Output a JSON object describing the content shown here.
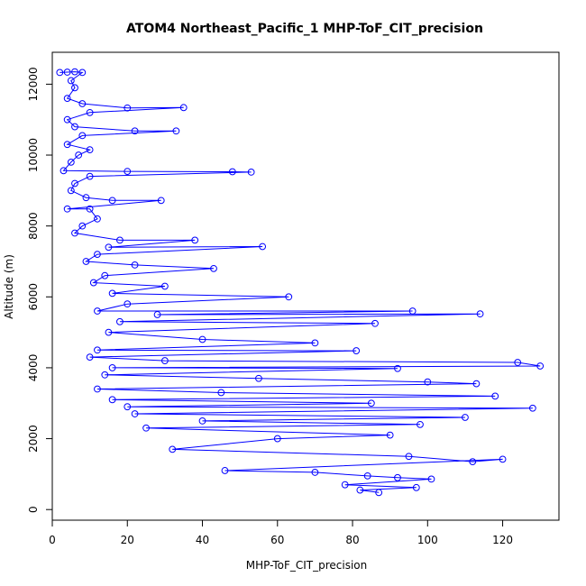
{
  "chart_data": {
    "type": "scatter",
    "title": "ATOM4 Northeast_Pacific_1 MHP-ToF_CIT_precision",
    "xlabel": "MHP-ToF_CIT_precision",
    "ylabel": "Altitude (m)",
    "xlim": [
      0,
      135
    ],
    "ylim": [
      -300,
      12900
    ],
    "x_ticks": [
      0,
      20,
      40,
      60,
      80,
      100,
      120
    ],
    "y_ticks": [
      0,
      2000,
      4000,
      6000,
      8000,
      10000,
      12000
    ],
    "grid": false,
    "legend": "none",
    "marker": "open-circle",
    "connected": true,
    "series": [
      {
        "color": "#0000ff",
        "points": [
          [
            2,
            12330
          ],
          [
            4,
            12340
          ],
          [
            6,
            12350
          ],
          [
            8,
            12330
          ],
          [
            5,
            12100
          ],
          [
            6,
            11900
          ],
          [
            4,
            11600
          ],
          [
            8,
            11450
          ],
          [
            20,
            11330
          ],
          [
            35,
            11340
          ],
          [
            10,
            11200
          ],
          [
            4,
            11000
          ],
          [
            6,
            10800
          ],
          [
            22,
            10680
          ],
          [
            33,
            10680
          ],
          [
            8,
            10550
          ],
          [
            4,
            10300
          ],
          [
            10,
            10150
          ],
          [
            7,
            10000
          ],
          [
            5,
            9800
          ],
          [
            3,
            9560
          ],
          [
            20,
            9540
          ],
          [
            48,
            9530
          ],
          [
            53,
            9520
          ],
          [
            10,
            9400
          ],
          [
            6,
            9200
          ],
          [
            5,
            9000
          ],
          [
            9,
            8800
          ],
          [
            16,
            8720
          ],
          [
            29,
            8720
          ],
          [
            4,
            8480
          ],
          [
            10,
            8480
          ],
          [
            12,
            8200
          ],
          [
            8,
            8000
          ],
          [
            6,
            7800
          ],
          [
            18,
            7600
          ],
          [
            38,
            7600
          ],
          [
            15,
            7400
          ],
          [
            56,
            7420
          ],
          [
            12,
            7200
          ],
          [
            9,
            7000
          ],
          [
            22,
            6900
          ],
          [
            43,
            6800
          ],
          [
            14,
            6600
          ],
          [
            11,
            6400
          ],
          [
            30,
            6300
          ],
          [
            16,
            6100
          ],
          [
            63,
            6000
          ],
          [
            20,
            5800
          ],
          [
            12,
            5600
          ],
          [
            96,
            5600
          ],
          [
            28,
            5500
          ],
          [
            114,
            5520
          ],
          [
            18,
            5300
          ],
          [
            86,
            5250
          ],
          [
            15,
            5000
          ],
          [
            40,
            4800
          ],
          [
            70,
            4700
          ],
          [
            12,
            4500
          ],
          [
            81,
            4480
          ],
          [
            10,
            4300
          ],
          [
            30,
            4200
          ],
          [
            124,
            4150
          ],
          [
            130,
            4050
          ],
          [
            16,
            4000
          ],
          [
            92,
            3980
          ],
          [
            14,
            3800
          ],
          [
            55,
            3700
          ],
          [
            100,
            3600
          ],
          [
            113,
            3550
          ],
          [
            12,
            3400
          ],
          [
            45,
            3300
          ],
          [
            118,
            3200
          ],
          [
            16,
            3100
          ],
          [
            85,
            3000
          ],
          [
            20,
            2900
          ],
          [
            128,
            2860
          ],
          [
            22,
            2700
          ],
          [
            110,
            2600
          ],
          [
            40,
            2500
          ],
          [
            98,
            2400
          ],
          [
            25,
            2300
          ],
          [
            90,
            2100
          ],
          [
            60,
            2000
          ],
          [
            32,
            1700
          ],
          [
            95,
            1500
          ],
          [
            112,
            1350
          ],
          [
            120,
            1420
          ],
          [
            46,
            1100
          ],
          [
            70,
            1050
          ],
          [
            84,
            950
          ],
          [
            92,
            900
          ],
          [
            101,
            860
          ],
          [
            78,
            700
          ],
          [
            97,
            620
          ],
          [
            82,
            550
          ],
          [
            87,
            480
          ]
        ]
      }
    ]
  }
}
